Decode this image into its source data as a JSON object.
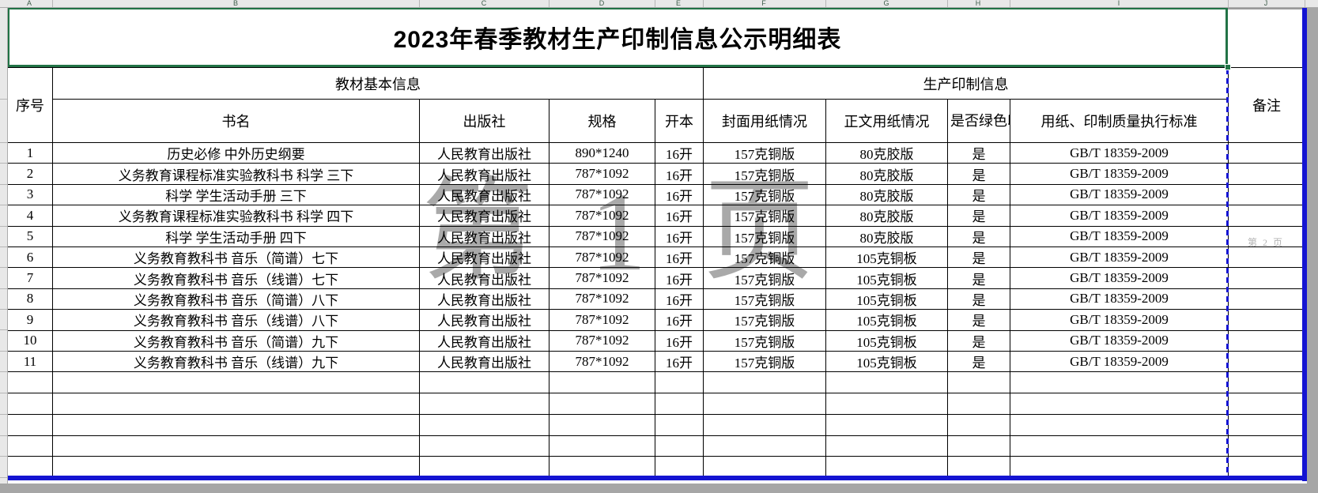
{
  "sheet": {
    "column_letters": [
      "A",
      "B",
      "C",
      "D",
      "E",
      "F",
      "G",
      "H",
      "I",
      "J"
    ]
  },
  "title": "2023年春季教材生产印制信息公示明细表",
  "watermarks": {
    "page1": "第 1 页",
    "page2": "第 2 页"
  },
  "table": {
    "header": {
      "seq": "序号",
      "basic_group": "教材基本信息",
      "print_group": "生产印制信息",
      "remark": "备注",
      "cols": [
        "书名",
        "出版社",
        "规格",
        "开本",
        "封面用纸情况",
        "正文用纸情况",
        "是否绿色印刷",
        "用纸、印制质量执行标准"
      ]
    },
    "rows": [
      [
        "1",
        "历史必修 中外历史纲要",
        "人民教育出版社",
        "890*1240",
        "16开",
        "157克铜版",
        "80克胶版",
        "是",
        "GB/T 18359-2009",
        ""
      ],
      [
        "2",
        "义务教育课程标准实验教科书 科学 三下",
        "人民教育出版社",
        "787*1092",
        "16开",
        "157克铜版",
        "80克胶版",
        "是",
        "GB/T 18359-2009",
        ""
      ],
      [
        "3",
        "科学 学生活动手册 三下",
        "人民教育出版社",
        "787*1092",
        "16开",
        "157克铜版",
        "80克胶版",
        "是",
        "GB/T 18359-2009",
        ""
      ],
      [
        "4",
        "义务教育课程标准实验教科书 科学 四下",
        "人民教育出版社",
        "787*1092",
        "16开",
        "157克铜版",
        "80克胶版",
        "是",
        "GB/T 18359-2009",
        ""
      ],
      [
        "5",
        "科学 学生活动手册 四下",
        "人民教育出版社",
        "787*1092",
        "16开",
        "157克铜版",
        "80克胶版",
        "是",
        "GB/T 18359-2009",
        ""
      ],
      [
        "6",
        "义务教育教科书 音乐（简谱）七下",
        "人民教育出版社",
        "787*1092",
        "16开",
        "157克铜版",
        "105克铜板",
        "是",
        "GB/T 18359-2009",
        ""
      ],
      [
        "7",
        "义务教育教科书 音乐（线谱）七下",
        "人民教育出版社",
        "787*1092",
        "16开",
        "157克铜版",
        "105克铜板",
        "是",
        "GB/T 18359-2009",
        ""
      ],
      [
        "8",
        "义务教育教科书 音乐（简谱）八下",
        "人民教育出版社",
        "787*1092",
        "16开",
        "157克铜版",
        "105克铜板",
        "是",
        "GB/T 18359-2009",
        ""
      ],
      [
        "9",
        "义务教育教科书 音乐（线谱）八下",
        "人民教育出版社",
        "787*1092",
        "16开",
        "157克铜版",
        "105克铜板",
        "是",
        "GB/T 18359-2009",
        ""
      ],
      [
        "10",
        "义务教育教科书 音乐（简谱）九下",
        "人民教育出版社",
        "787*1092",
        "16开",
        "157克铜版",
        "105克铜板",
        "是",
        "GB/T 18359-2009",
        ""
      ],
      [
        "11",
        "义务教育教科书 音乐（线谱）九下",
        "人民教育出版社",
        "787*1092",
        "16开",
        "157克铜版",
        "105克铜板",
        "是",
        "GB/T 18359-2009",
        ""
      ]
    ],
    "empty_row_count": 5
  }
}
